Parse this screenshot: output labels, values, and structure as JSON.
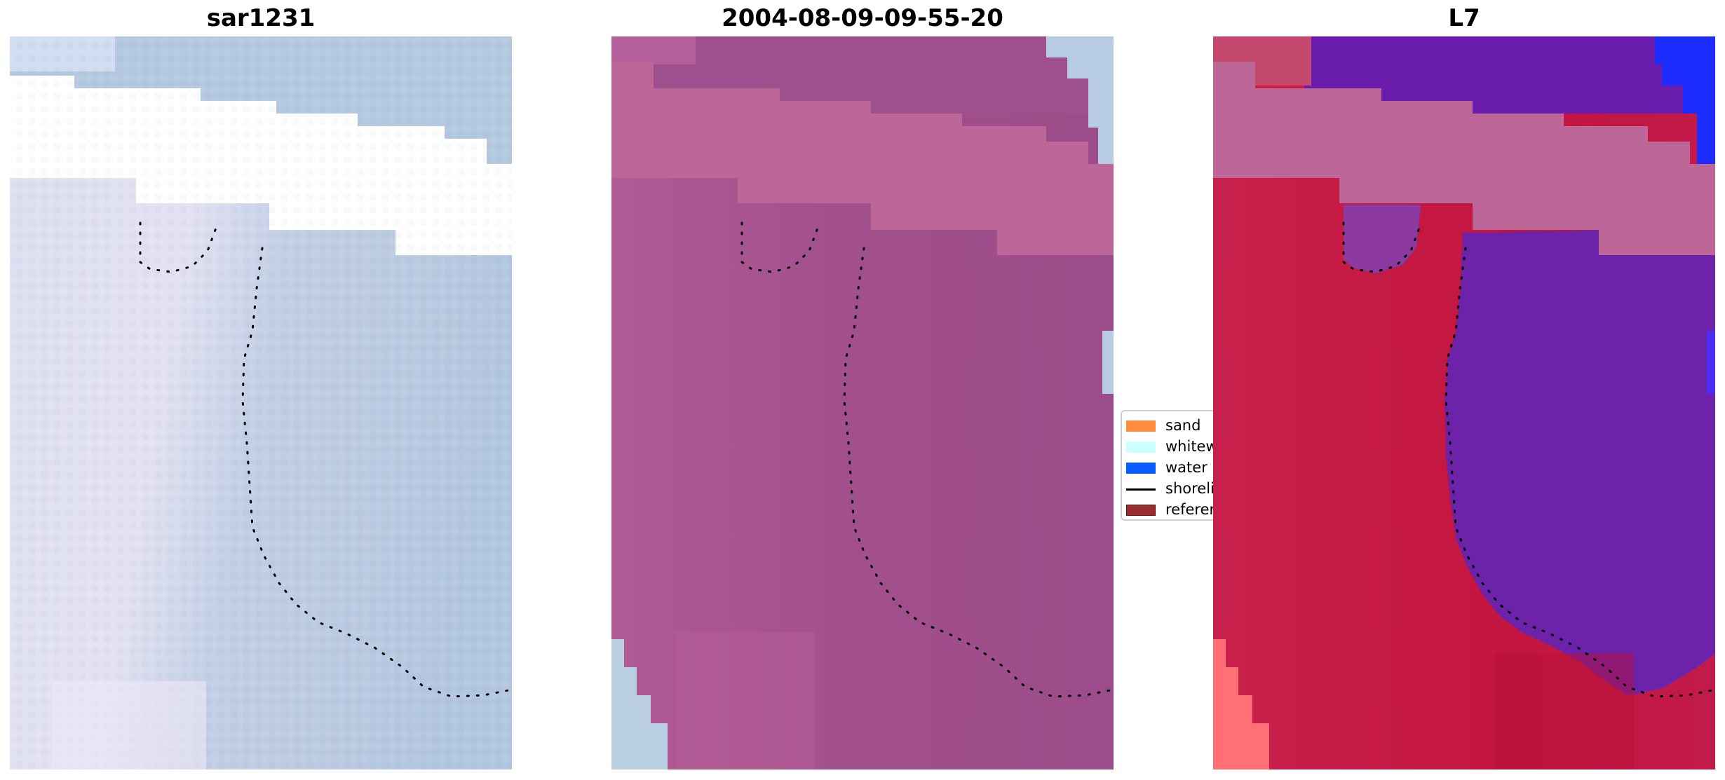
{
  "panels": [
    {
      "title": "sar1231",
      "overlay": "rgb-light"
    },
    {
      "title": "2004-08-09-09-55-20",
      "overlay": "magenta-classification"
    },
    {
      "title": "L7",
      "overlay": "red-blue-classification"
    }
  ],
  "legend": {
    "items": [
      {
        "label": "sand",
        "color": "#ff8c3a",
        "kind": "patch"
      },
      {
        "label": "whitewater",
        "color": "#ccffff",
        "kind": "patch"
      },
      {
        "label": "water",
        "color": "#0a5cff",
        "kind": "patch"
      },
      {
        "label": "shoreline",
        "color": "#000000",
        "kind": "line"
      },
      {
        "label": "reference",
        "color": "#9a2d2d",
        "kind": "patch"
      }
    ]
  },
  "colors": {
    "base_light": "#b9c9df",
    "magenta_sea": "#9c4e8c",
    "magenta_band": "#bd6698",
    "class_red": "#c6204a",
    "class_purple": "#6a1cad",
    "class_blue": "#1d2bff",
    "sand_red": "#ff6f6f",
    "shoreline_dots": "#000000"
  }
}
